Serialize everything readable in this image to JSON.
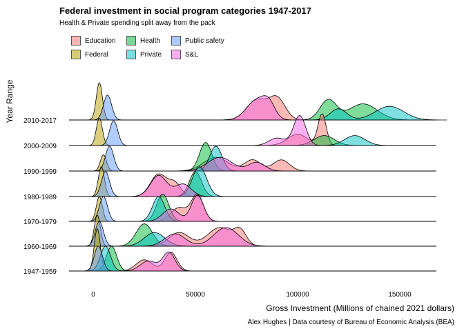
{
  "chart_data": {
    "type": "area",
    "subtype": "ridgeline",
    "title": "Federal investment in social program categories 1947-2017",
    "subtitle": "Health & Private spending split away from the pack",
    "xlabel": "Gross Investment (Millions of chained 2021 dollars)",
    "ylabel": "Year Range",
    "caption": "Alex Hughes | Data courtesy of Bureau of Economic Analysis (BEA)",
    "xlim": [
      -10000,
      170000
    ],
    "x_ticks": [
      0,
      50000,
      100000,
      150000
    ],
    "x_tick_labels": [
      "0",
      "50000",
      "100000",
      "150000"
    ],
    "categories": [
      "1947-1959",
      "1960-1969",
      "1970-1979",
      "1980-1989",
      "1990-1999",
      "2000-2009",
      "2010-2017"
    ],
    "legend_position": "top",
    "grid": false,
    "series": [
      {
        "name": "Education",
        "color": "#F8766D",
        "ranges": [
          {
            "range": "1947-1959",
            "peaks": [
              [
                25000,
                0.45,
                4000
              ],
              [
                38000,
                0.75,
                3000
              ]
            ]
          },
          {
            "range": "1960-1969",
            "peaks": [
              [
                42000,
                0.55,
                5000
              ],
              [
                62000,
                0.75,
                6000
              ],
              [
                72000,
                0.55,
                3000
              ]
            ]
          },
          {
            "range": "1970-1979",
            "peaks": [
              [
                42000,
                0.55,
                4000
              ],
              [
                51000,
                1.05,
                3000
              ]
            ]
          },
          {
            "range": "1980-1989",
            "peaks": [
              [
                32000,
                0.9,
                4000
              ],
              [
                40000,
                0.5,
                3000
              ]
            ]
          },
          {
            "range": "1990-1999",
            "peaks": [
              [
                60000,
                0.55,
                6000
              ],
              [
                78000,
                0.45,
                4000
              ],
              [
                92000,
                0.45,
                4000
              ]
            ]
          },
          {
            "range": "2000-2009",
            "peaks": [
              [
                112000,
                1.25,
                2000
              ],
              [
                100000,
                0.45,
                5000
              ]
            ]
          },
          {
            "range": "2010-2017",
            "peaks": [
              [
                80000,
                0.8,
                5000
              ],
              [
                90000,
                0.85,
                4000
              ]
            ]
          }
        ]
      },
      {
        "name": "Federal",
        "color": "#B79F00",
        "ranges": [
          {
            "range": "1947-1959",
            "peaks": [
              [
                2000,
                1.7,
                1500
              ]
            ]
          },
          {
            "range": "1960-1969",
            "peaks": [
              [
                2000,
                1.25,
                1500
              ]
            ]
          },
          {
            "range": "1970-1979",
            "peaks": [
              [
                3000,
                1.0,
                1500
              ]
            ]
          },
          {
            "range": "1980-1989",
            "peaks": [
              [
                4000,
                1.2,
                1500
              ]
            ]
          },
          {
            "range": "1990-1999",
            "peaks": [
              [
                5000,
                0.65,
                1500
              ]
            ]
          },
          {
            "range": "2000-2009",
            "peaks": [
              [
                3000,
                1.1,
                1500
              ]
            ]
          },
          {
            "range": "2010-2017",
            "peaks": [
              [
                3000,
                1.5,
                1500
              ]
            ]
          }
        ]
      },
      {
        "name": "Health",
        "color": "#00BA38",
        "ranges": [
          {
            "range": "1947-1959",
            "peaks": [
              [
                9000,
                1.0,
                2500
              ]
            ]
          },
          {
            "range": "1960-1969",
            "peaks": [
              [
                25000,
                0.9,
                4000
              ]
            ]
          },
          {
            "range": "1970-1979",
            "peaks": [
              [
                34000,
                1.1,
                3000
              ]
            ]
          },
          {
            "range": "1980-1989",
            "peaks": [
              [
                50000,
                1.0,
                3000
              ]
            ]
          },
          {
            "range": "1990-1999",
            "peaks": [
              [
                55000,
                1.15,
                3000
              ]
            ]
          },
          {
            "range": "2000-2009",
            "peaks": [
              [
                113000,
                0.4,
                5000
              ]
            ]
          },
          {
            "range": "2010-2017",
            "peaks": [
              [
                115000,
                0.8,
                4000
              ],
              [
                132000,
                0.65,
                7000
              ]
            ]
          }
        ]
      },
      {
        "name": "Private",
        "color": "#00BFC4",
        "ranges": [
          {
            "range": "1947-1959",
            "peaks": [
              [
                6000,
                1.0,
                2500
              ]
            ]
          },
          {
            "range": "1960-1969",
            "peaks": [
              [
                30000,
                0.55,
                5000
              ]
            ]
          },
          {
            "range": "1970-1979",
            "peaks": [
              [
                32000,
                1.0,
                3000
              ]
            ]
          },
          {
            "range": "1980-1989",
            "peaks": [
              [
                52000,
                1.2,
                3500
              ]
            ]
          },
          {
            "range": "1990-1999",
            "peaks": [
              [
                60000,
                1.0,
                3000
              ]
            ]
          },
          {
            "range": "2000-2009",
            "peaks": [
              [
                128000,
                0.4,
                5000
              ]
            ]
          },
          {
            "range": "2010-2017",
            "peaks": [
              [
                120000,
                0.45,
                4000
              ],
              [
                145000,
                0.55,
                7000
              ]
            ]
          }
        ]
      },
      {
        "name": "Public safety",
        "color": "#619CFF",
        "ranges": [
          {
            "range": "1947-1959",
            "peaks": [
              [
                2500,
                1.0,
                2000
              ]
            ]
          },
          {
            "range": "1960-1969",
            "peaks": [
              [
                3000,
                1.0,
                2000
              ]
            ]
          },
          {
            "range": "1970-1979",
            "peaks": [
              [
                5000,
                1.0,
                2000
              ]
            ]
          },
          {
            "range": "1980-1989",
            "peaks": [
              [
                6000,
                1.0,
                2000
              ]
            ]
          },
          {
            "range": "1990-1999",
            "peaks": [
              [
                8000,
                1.0,
                2000
              ]
            ]
          },
          {
            "range": "2000-2009",
            "peaks": [
              [
                10000,
                1.0,
                2000
              ]
            ]
          },
          {
            "range": "2010-2017",
            "peaks": [
              [
                7000,
                1.0,
                2000
              ]
            ]
          }
        ]
      },
      {
        "name": "S&L",
        "color": "#F564E3",
        "ranges": [
          {
            "range": "1947-1959",
            "peaks": [
              [
                27000,
                0.4,
                4000
              ],
              [
                37000,
                0.75,
                3000
              ]
            ]
          },
          {
            "range": "1960-1969",
            "peaks": [
              [
                40000,
                0.5,
                5000
              ],
              [
                65000,
                0.75,
                6000
              ]
            ]
          },
          {
            "range": "1970-1979",
            "peaks": [
              [
                38000,
                0.5,
                4000
              ],
              [
                51000,
                1.05,
                3000
              ]
            ]
          },
          {
            "range": "1980-1989",
            "peaks": [
              [
                32000,
                0.85,
                4000
              ],
              [
                44000,
                0.5,
                4000
              ]
            ]
          },
          {
            "range": "1990-1999",
            "peaks": [
              [
                62000,
                0.55,
                6000
              ],
              [
                80000,
                0.35,
                4000
              ]
            ]
          },
          {
            "range": "2000-2009",
            "peaks": [
              [
                101000,
                1.2,
                3000
              ],
              [
                90000,
                0.3,
                4000
              ]
            ]
          },
          {
            "range": "2010-2017",
            "peaks": [
              [
                80000,
                0.8,
                5000
              ],
              [
                86000,
                0.5,
                3000
              ]
            ]
          }
        ]
      }
    ]
  }
}
